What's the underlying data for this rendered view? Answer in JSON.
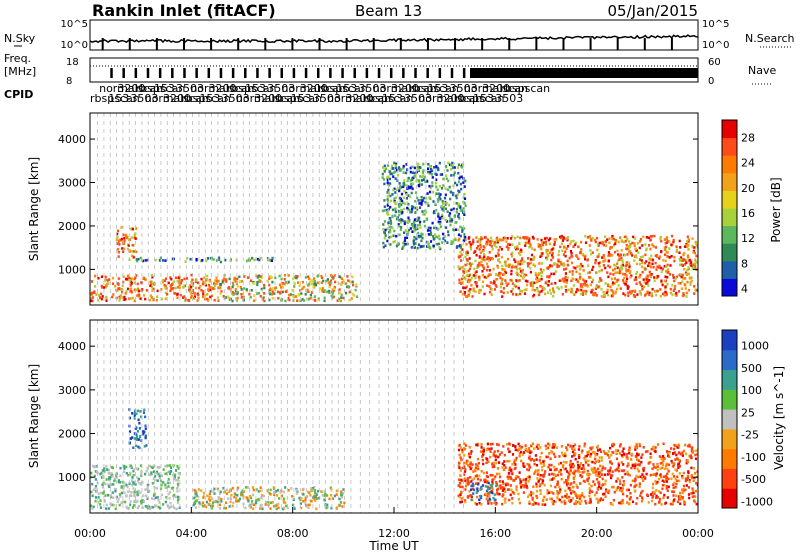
{
  "header": {
    "station": "Rankin Inlet (fitACF)",
    "beam": "Beam 13",
    "date": "05/Jan/2015"
  },
  "labels": {
    "nsky": "N.Sky",
    "nsearch": "N.Search",
    "freq_line1": "Freq.",
    "freq_line2": "[MHz]",
    "nave": "Nave",
    "cpid": "CPID",
    "cpid_codes": "rbspscan / normalscan ... 153"
  },
  "noise_panel": {
    "left_ticks": [
      "10^5",
      "10^0"
    ],
    "right_ticks": [
      "10^5",
      "10^0"
    ]
  },
  "freq_panel": {
    "left_ticks": [
      "18",
      "8"
    ],
    "right_ticks": [
      "60",
      "0"
    ]
  },
  "chart_data": [
    {
      "type": "heatmap",
      "name": "power",
      "ylabel": "Slant Range [km]",
      "xlabel": "",
      "ylim": [
        180,
        4600
      ],
      "xlim": [
        0,
        24
      ],
      "y_ticks": [
        "1000",
        "2000",
        "3000",
        "4000"
      ],
      "colorbar": {
        "label": "Power [dB]",
        "ticks": [
          "28",
          "24",
          "20",
          "16",
          "12",
          "8",
          "4"
        ],
        "colors": [
          "#e60000",
          "#ff4a1a",
          "#ff7a00",
          "#f2a21a",
          "#e6d21a",
          "#a8d23a",
          "#5cb85c",
          "#2e8b57",
          "#1f5fa8",
          "#0a0ad8"
        ]
      },
      "features": [
        {
          "time_range": [
            0.0,
            5.0
          ],
          "range_km": [
            300,
            900
          ],
          "level": "high"
        },
        {
          "time_range": [
            1.0,
            1.8
          ],
          "range_km": [
            1300,
            2000
          ],
          "level": "high"
        },
        {
          "time_range": [
            1.5,
            7.5
          ],
          "range_km": [
            1200,
            1300
          ],
          "level": "low"
        },
        {
          "time_range": [
            5.0,
            10.5
          ],
          "range_km": [
            300,
            900
          ],
          "level": "medium"
        },
        {
          "time_range": [
            14.5,
            24.0
          ],
          "range_km": [
            400,
            1800
          ],
          "level": "high"
        },
        {
          "time_range": [
            11.5,
            14.8
          ],
          "range_km": [
            1500,
            3500
          ],
          "level": "low"
        }
      ]
    },
    {
      "type": "heatmap",
      "name": "velocity",
      "ylabel": "Slant Range [km]",
      "xlabel": "Time UT",
      "ylim": [
        180,
        4600
      ],
      "xlim": [
        0,
        24
      ],
      "x_ticks": [
        "00:00",
        "04:00",
        "08:00",
        "12:00",
        "16:00",
        "20:00",
        "00:00"
      ],
      "y_ticks": [
        "1000",
        "2000",
        "3000",
        "4000"
      ],
      "colorbar": {
        "label": "Velocity [m s^-1]",
        "ticks": [
          "1000",
          "500",
          "100",
          "25",
          "-25",
          "-100",
          "-500",
          "-1000"
        ],
        "colors": [
          "#1a3fbf",
          "#2a6ac8",
          "#3aa090",
          "#5cbf3a",
          "#c0c0c0",
          "#f2a21a",
          "#ff7a00",
          "#ff4010",
          "#e60000"
        ]
      },
      "features": [
        {
          "time_range": [
            0.0,
            3.5
          ],
          "range_km": [
            300,
            1300
          ],
          "velocity": "near-zero"
        },
        {
          "time_range": [
            1.5,
            2.2
          ],
          "range_km": [
            1700,
            2600
          ],
          "velocity": "positive"
        },
        {
          "time_range": [
            4.0,
            10.0
          ],
          "range_km": [
            300,
            800
          ],
          "velocity": "mixed"
        },
        {
          "time_range": [
            14.5,
            24.0
          ],
          "range_km": [
            400,
            1800
          ],
          "velocity": "negative"
        },
        {
          "time_range": [
            15.0,
            16.0
          ],
          "range_km": [
            500,
            900
          ],
          "velocity": "positive"
        }
      ]
    }
  ]
}
